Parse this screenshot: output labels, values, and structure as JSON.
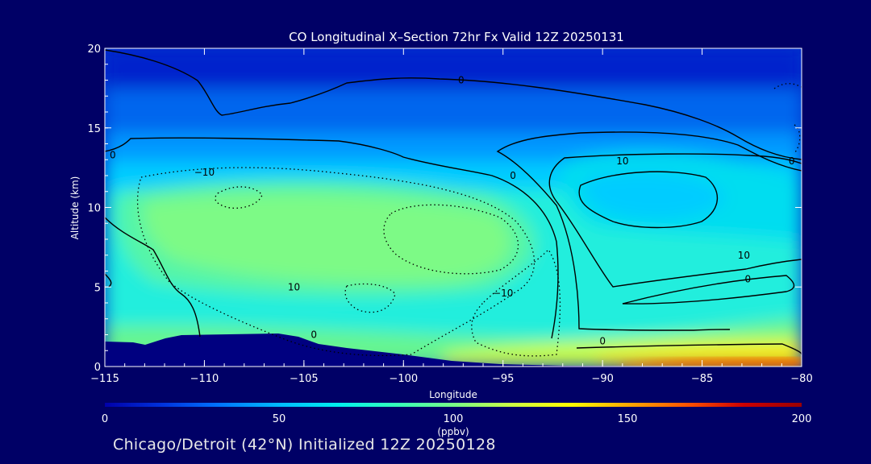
{
  "chart_data": {
    "type": "heatmap",
    "title": "CO Longitudinal X–Section 72hr  Fx Valid 12Z 20250131",
    "xlabel": "Longitude",
    "ylabel": "Altitude (km)",
    "xlim": [
      -115,
      -80
    ],
    "ylim": [
      0,
      20
    ],
    "x_ticks": [
      -115,
      -110,
      -105,
      -100,
      -95,
      -90,
      -85,
      -80
    ],
    "x_tick_labels": [
      "−115",
      "−110",
      "−105",
      "−100",
      "−95",
      "−90",
      "−85",
      "−80"
    ],
    "y_ticks": [
      0,
      5,
      10,
      15,
      20
    ],
    "y_tick_labels": [
      "0",
      "5",
      "10",
      "15",
      "20"
    ],
    "colorbar": {
      "min": 0,
      "max": 200,
      "ticks": [
        0,
        50,
        100,
        150,
        200
      ],
      "tick_labels": [
        "0",
        "50",
        "100",
        "150",
        "200"
      ],
      "units": "(ppbv)",
      "colors": [
        "#0000aa",
        "#0033dd",
        "#0077ff",
        "#00bbff",
        "#00eeee",
        "#33ffbb",
        "#77ff88",
        "#ccff44",
        "#ffff00",
        "#ffaa00",
        "#ff5500",
        "#cc0000",
        "#990000"
      ]
    },
    "contour_labels": [
      {
        "text": "0",
        "lon": -97.1,
        "alt": 18.0
      },
      {
        "text": "0",
        "lon": -114.6,
        "alt": 13.3
      },
      {
        "text": "−10",
        "lon": -110.0,
        "alt": 12.2
      },
      {
        "text": "0",
        "lon": -94.5,
        "alt": 12.0
      },
      {
        "text": "10",
        "lon": -89.0,
        "alt": 12.9
      },
      {
        "text": "0",
        "lon": -80.5,
        "alt": 12.9
      },
      {
        "text": "10",
        "lon": -82.9,
        "alt": 7.0
      },
      {
        "text": "0",
        "lon": -82.7,
        "alt": 5.5
      },
      {
        "text": "10",
        "lon": -105.5,
        "alt": 5.0
      },
      {
        "text": "−10",
        "lon": -95.0,
        "alt": 4.6
      },
      {
        "text": "0",
        "lon": -104.5,
        "alt": 2.0
      },
      {
        "text": "0",
        "lon": -90.0,
        "alt": 1.6
      }
    ]
  },
  "footer": "Chicago/Detroit (42°N) Initialized 12Z 20250128"
}
